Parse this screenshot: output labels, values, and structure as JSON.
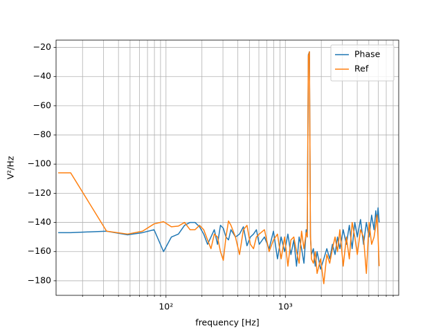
{
  "chart_data": {
    "type": "line",
    "xlabel": "frequency [Hz]",
    "ylabel": "V²/Hz",
    "xscale": "log",
    "xlim": [
      12,
      8900
    ],
    "ylim": [
      -190,
      -15
    ],
    "xticks": [
      {
        "value": 100,
        "label": "10²"
      },
      {
        "value": 1000,
        "label": "10³"
      }
    ],
    "xminorticks": [
      20,
      30,
      40,
      50,
      60,
      70,
      80,
      90,
      200,
      300,
      400,
      500,
      600,
      700,
      800,
      900,
      2000,
      3000,
      4000,
      5000,
      6000,
      7000,
      8000
    ],
    "yticks": [
      {
        "value": -180,
        "label": "−180"
      },
      {
        "value": -160,
        "label": "−160"
      },
      {
        "value": -140,
        "label": "−140"
      },
      {
        "value": -120,
        "label": "−120"
      },
      {
        "value": -100,
        "label": "−100"
      },
      {
        "value": -80,
        "label": "−80"
      },
      {
        "value": -60,
        "label": "−60"
      },
      {
        "value": -40,
        "label": "−40"
      },
      {
        "value": -20,
        "label": "−20"
      }
    ],
    "grid": true,
    "legend": "upper right",
    "x": [
      12.5,
      15.9,
      31.8,
      47.7,
      63.6,
      79.5,
      95.4,
      111,
      127,
      143,
      159,
      175,
      191,
      207,
      223,
      238,
      254,
      270,
      286,
      302,
      318,
      334,
      350,
      382,
      413,
      445,
      477,
      509,
      541,
      572,
      604,
      668,
      731,
      795,
      859,
      922,
      986,
      1050,
      1113,
      1177,
      1240,
      1304,
      1367,
      1431,
      1495,
      1526,
      1558,
      1590,
      1622,
      1653,
      1717,
      1780,
      1844,
      1971,
      2098,
      2225,
      2353,
      2480,
      2607,
      2734,
      2861,
      3052,
      3243,
      3434,
      3625,
      3816,
      4007,
      4261,
      4515,
      4770,
      5024,
      5279,
      5533,
      5724,
      5851,
      5978,
      6106
    ],
    "series": [
      {
        "name": "Phase",
        "color": "#1f77b4",
        "values": [
          -147,
          -147,
          -146,
          -148.5,
          -147,
          -145,
          -160,
          -150,
          -148,
          -142,
          -140,
          -140,
          -143,
          -148,
          -155,
          -150,
          -145,
          -155,
          -142,
          -144,
          -150,
          -152,
          -145,
          -150,
          -148,
          -143,
          -156,
          -150,
          -148,
          -145,
          -155,
          -150,
          -158,
          -146,
          -165,
          -150,
          -160,
          -148,
          -162,
          -152,
          -170,
          -150,
          -158,
          -168,
          -145,
          -150,
          -25,
          -23,
          -150,
          -162,
          -158,
          -170,
          -160,
          -172,
          -165,
          -158,
          -165,
          -155,
          -162,
          -150,
          -158,
          -145,
          -155,
          -142,
          -158,
          -140,
          -150,
          -138,
          -155,
          -140,
          -150,
          -135,
          -145,
          -132,
          -140,
          -130,
          -140
        ]
      },
      {
        "name": "Ref",
        "color": "#ff7f0e",
        "values": [
          -106,
          -106,
          -146,
          -148,
          -146,
          -141,
          -139.5,
          -143,
          -142.5,
          -140,
          -145,
          -145,
          -142,
          -145,
          -152,
          -158,
          -148,
          -150,
          -160,
          -166,
          -150,
          -139,
          -142,
          -150,
          -162,
          -145,
          -142,
          -155,
          -158,
          -150,
          -148,
          -145,
          -160,
          -152,
          -148,
          -165,
          -150,
          -170,
          -152,
          -150,
          -160,
          -168,
          -146,
          -158,
          -147,
          -150,
          -26,
          -23,
          -148,
          -165,
          -168,
          -160,
          -175,
          -165,
          -182,
          -162,
          -168,
          -158,
          -150,
          -160,
          -145,
          -170,
          -150,
          -165,
          -140,
          -150,
          -162,
          -145,
          -150,
          -175,
          -140,
          -155,
          -150,
          -142,
          -135,
          -150,
          -170
        ]
      }
    ]
  }
}
